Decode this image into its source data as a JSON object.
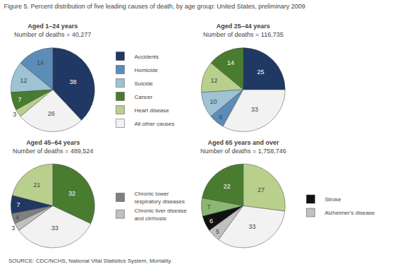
{
  "title": "Figure 5. Percent distribution of five leading causes of death, by age group: United States, preliminary 2009",
  "annotations": [
    "SOURCE: CDC/NCHS, National Vital Statistics System, Mortality."
  ],
  "chart_data": [
    {
      "type": "pie",
      "title": "Aged 1–24 years",
      "subtitle": "Number of deaths = 40,277",
      "categories": [
        "Accidents",
        "Homicide",
        "Suicide",
        "Cancer",
        "Heart disease",
        "All other causes"
      ],
      "values": [
        38,
        14,
        12,
        7,
        3,
        26
      ],
      "colors": [
        "#1f3864",
        "#5b8db8",
        "#9dc3d4",
        "#4a7c2f",
        "#b8d08c",
        "#f2f2f2"
      ],
      "data_labels": true,
      "legend": "right"
    },
    {
      "type": "pie",
      "title": "Aged 25–44 years",
      "subtitle": "Number of deaths = 116,735",
      "categories": [
        "Accidents",
        "Cancer",
        "Heart disease",
        "Suicide",
        "Homicide",
        "All other causes"
      ],
      "values": [
        25,
        14,
        12,
        10,
        6,
        33
      ],
      "colors": [
        "#1f3864",
        "#4a7c2f",
        "#b8d08c",
        "#9dc3d4",
        "#5b8db8",
        "#f2f2f2"
      ],
      "data_labels": true,
      "legend": "right"
    },
    {
      "type": "pie",
      "title": "Aged 45–64 years",
      "subtitle": "Number of deaths = 489,524",
      "categories": [
        "Cancer",
        "Heart disease",
        "Accidents",
        "Chronic lower\nrespiratory diseases",
        "Chronic liver disease\nand cirrhosis",
        "All other causes"
      ],
      "values": [
        32,
        21,
        7,
        4,
        3,
        33
      ],
      "colors": [
        "#4a7c2f",
        "#b8d08c",
        "#1f3864",
        "#808080",
        "#c0c0c0",
        "#f2f2f2"
      ],
      "data_labels": true,
      "legend": "right"
    },
    {
      "type": "pie",
      "title": "Aged 65 years and over",
      "subtitle": "Number of deaths = 1,758,746",
      "categories": [
        "Heart disease",
        "Cancer",
        "Chronic lower\nrespiratory diseases",
        "Stroke",
        "Alzheimer's disease",
        "All other causes"
      ],
      "values": [
        27,
        22,
        7,
        6,
        5,
        33
      ],
      "colors": [
        "#b8d08c",
        "#4a7c2f",
        "#8ab870",
        "#111111",
        "#c0c0c0",
        "#f2f2f2"
      ],
      "data_labels": true,
      "legend": "right"
    }
  ]
}
